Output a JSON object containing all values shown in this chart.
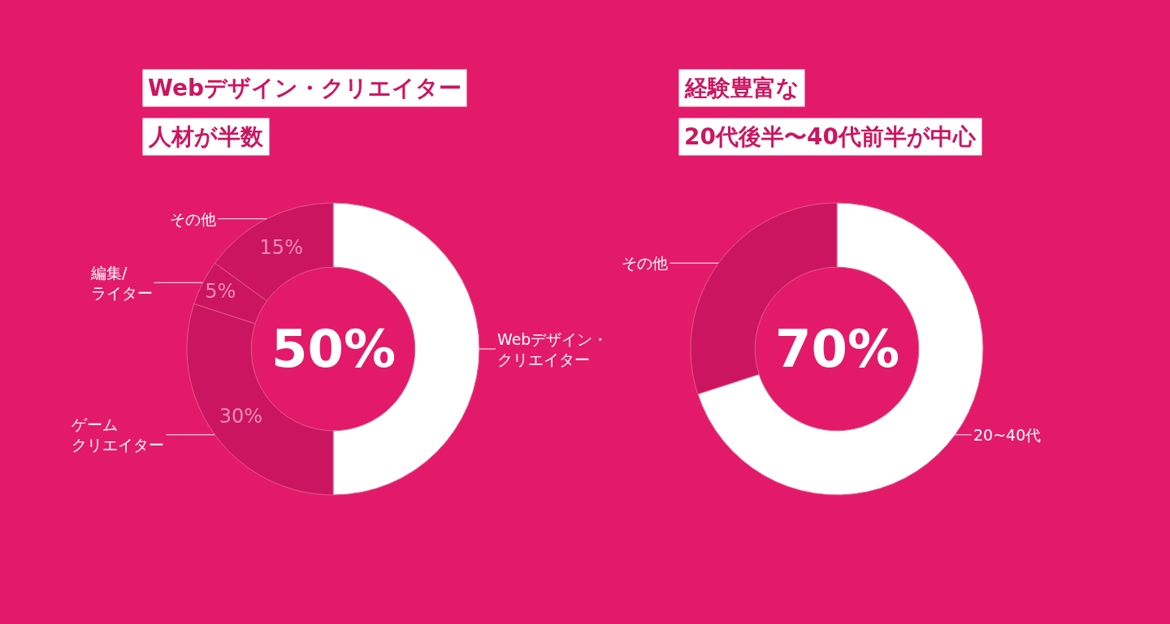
{
  "chart_data": [
    {
      "type": "donut",
      "title": "Webデザイン・クリエイター",
      "subtitle": "人材が半数",
      "categories": [
        "Webデザイン・クリエイター",
        "ゲームクリエイター",
        "編集/ライター",
        "その他"
      ],
      "values": [
        50,
        30,
        5,
        15
      ],
      "colors": [
        "#ffffff",
        "#cc1560",
        "#cc1560",
        "#cc1560"
      ],
      "value_labels": [
        null,
        "30%",
        "5%",
        "15%"
      ],
      "annotations": [
        "50%"
      ]
    },
    {
      "type": "donut",
      "title": "経験豊富な",
      "subtitle": "20代後半〜40代前半が中心",
      "categories": [
        "20~40代",
        "その他"
      ],
      "values": [
        70,
        30
      ],
      "colors": [
        "#ffffff",
        "#cc1560"
      ],
      "annotations": [
        "70%"
      ]
    }
  ]
}
